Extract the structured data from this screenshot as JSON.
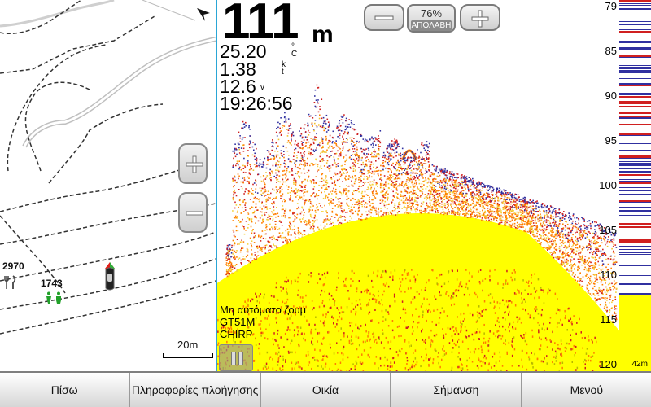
{
  "map": {
    "zoom_in": "+",
    "zoom_out": "−",
    "poi_numbers": [
      "2970",
      "1743"
    ],
    "scale_label": "20m",
    "icons": [
      "restaurant-icon",
      "restroom-icon",
      "boat-icon",
      "north-arrow-icon"
    ]
  },
  "sonar": {
    "depth_value": "111",
    "depth_unit": "m",
    "water_temp": "25.20",
    "water_temp_unit": "°C",
    "speed": "1.38",
    "speed_unit": "kt",
    "voltage": "12.6",
    "voltage_unit": "v",
    "time": "19:26:56",
    "zoom_out_btn": "−",
    "zoom_in_btn": "+",
    "gain_value": "76%",
    "gain_label": "ΑΠΟΛΑΒΗ",
    "depth_scale": [
      "79",
      "85",
      "90",
      "95",
      "100",
      "105",
      "110",
      "115",
      "120"
    ],
    "mode_text": "Μη αυτόματο ζουμ",
    "transducer": "GT51M",
    "frequency": "CHIRP",
    "flasher_label": "42m",
    "colors": {
      "frame": "#2aa6d6",
      "bottom": "#ffff00",
      "echo_mid": "#ff7f00",
      "echo_high": "#d02020",
      "echo_low": "#3030a0"
    }
  },
  "toolbar": {
    "buttons": [
      "Πίσω",
      "Πληροφορίες πλοήγησης",
      "Οικία",
      "Σήμανση",
      "Μενού"
    ]
  }
}
